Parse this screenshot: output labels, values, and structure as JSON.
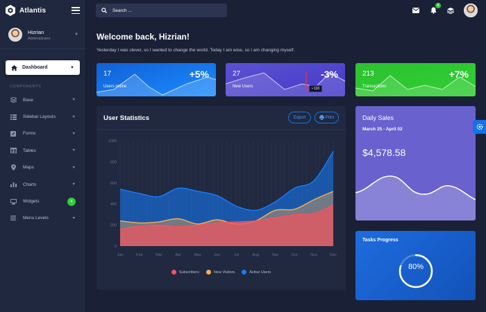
{
  "brand": {
    "name": "Atlantis"
  },
  "user": {
    "name": "Hizrian",
    "role": "Administrator"
  },
  "sidebar": {
    "active": {
      "label": "Dashboard"
    },
    "section_label": "COMPONENTS",
    "items": [
      {
        "label": "Base",
        "icon": "layers-icon"
      },
      {
        "label": "Sidebar Layouts",
        "icon": "th-list-icon"
      },
      {
        "label": "Forms",
        "icon": "pen-square-icon"
      },
      {
        "label": "Tables",
        "icon": "table-icon"
      },
      {
        "label": "Maps",
        "icon": "map-marker-icon"
      },
      {
        "label": "Charts",
        "icon": "chart-bar-icon"
      },
      {
        "label": "Widgets",
        "icon": "desktop-icon",
        "badge": "4"
      },
      {
        "label": "Menu Levels",
        "icon": "bars-icon"
      }
    ]
  },
  "search": {
    "placeholder": "Search ..."
  },
  "topbar": {
    "notification_count": "4"
  },
  "welcome": {
    "title": "Welcome back, Hizrian!",
    "subtitle": "Yesterday I was clever, so I wanted to change the world. Today I am wise, so I am changing myself."
  },
  "stats": [
    {
      "value": "17",
      "change": "+5%",
      "label": "Users online"
    },
    {
      "value": "27",
      "change": "-3%",
      "label": "New Users",
      "tooltip": "• 110"
    },
    {
      "value": "213",
      "change": "+7%",
      "label": "Transactions"
    }
  ],
  "user_statistics": {
    "title": "User Statistics",
    "export_label": "Export",
    "print_label": "Print"
  },
  "daily_sales": {
    "title": "Daily Sales",
    "range": "March 25 - April 02",
    "amount": "$4,578.58"
  },
  "tasks_progress": {
    "title": "Tasks Progress",
    "percent_label": "80%",
    "value": 0.8
  },
  "colors": {
    "background": "#1a2035",
    "card": "#202940",
    "blue": "#1572e8",
    "purple": "#6861ce",
    "green": "#31ce36",
    "red": "#f25961",
    "orange": "#fdaf4b"
  },
  "chart_data": {
    "type": "area",
    "title": "User Statistics",
    "categories": [
      "Jan",
      "Feb",
      "Mar",
      "Apr",
      "May",
      "Jun",
      "Jul",
      "Aug",
      "Sep",
      "Oct",
      "Nov",
      "Dec"
    ],
    "ylim": [
      0,
      1000
    ],
    "yticks": [
      0,
      200,
      400,
      600,
      800,
      1000
    ],
    "series": [
      {
        "name": "Subscribers",
        "color": "#f3545d",
        "values": [
          160,
          190,
          200,
          185,
          200,
          220,
          230,
          240,
          270,
          300,
          310,
          390
        ]
      },
      {
        "name": "New Visitors",
        "color": "#fdaf4b",
        "values": [
          240,
          220,
          230,
          260,
          210,
          250,
          210,
          240,
          340,
          350,
          440,
          520
        ]
      },
      {
        "name": "Active Users",
        "color": "#177dff",
        "values": [
          540,
          500,
          470,
          550,
          520,
          480,
          380,
          340,
          420,
          550,
          620,
          900
        ]
      }
    ]
  }
}
